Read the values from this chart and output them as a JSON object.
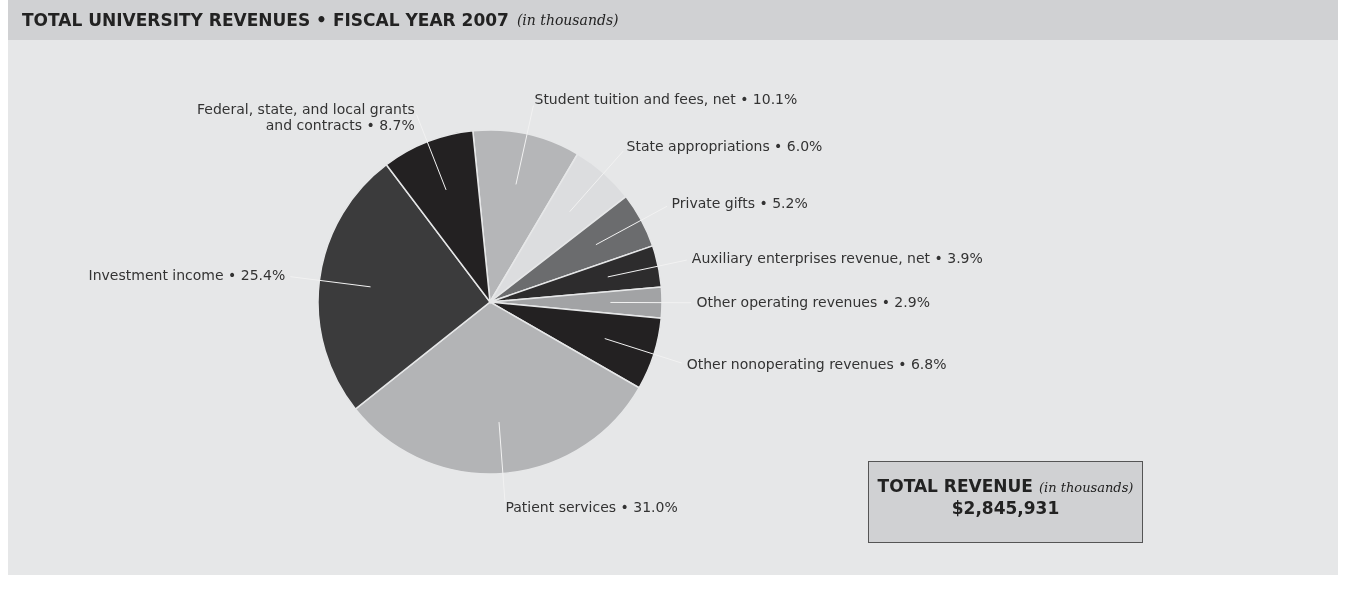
{
  "chart_data": {
    "type": "pie",
    "title": "TOTAL UNIVERSITY REVENUES • FISCAL YEAR 2007",
    "subtitle": "(in thousands)",
    "categories": [
      "Student tuition and fees, net • 10.1%",
      "State appropriations • 6.0%",
      "Private gifts • 5.2%",
      "Auxiliary enterprises revenue, net • 3.9%",
      "Other operating revenues • 2.9%",
      "Other nonoperating revenues • 6.8%",
      "Patient services • 31.0%",
      "Investment income • 25.4%",
      "Federal, state, and local grants\nand contracts • 8.7%"
    ],
    "values": [
      10.1,
      6.0,
      5.2,
      3.9,
      2.9,
      6.8,
      31.0,
      25.4,
      8.7
    ],
    "colors": [
      "#b5b6b8",
      "#dcdddf",
      "#6b6c6e",
      "#2d2c2d",
      "#a2a3a5",
      "#232122",
      "#b3b4b6",
      "#3b3b3c",
      "#232122"
    ],
    "annotations": [
      "TOTAL REVENUE",
      "(in thousands)",
      "$2,845,931"
    ]
  }
}
